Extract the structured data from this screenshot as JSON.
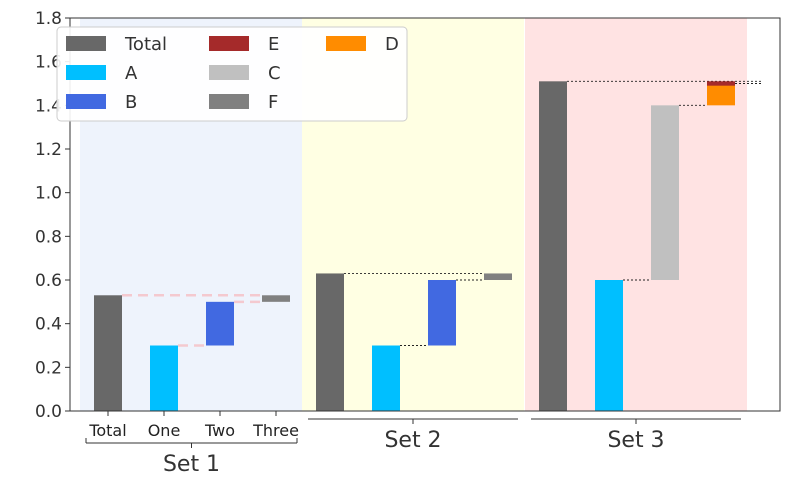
{
  "chart_data": {
    "type": "bar",
    "subtype": "waterfall",
    "ylim": [
      0,
      1.8
    ],
    "yticks": [
      "0.0",
      "0.2",
      "0.4",
      "0.6",
      "0.8",
      "1.0",
      "1.2",
      "1.4",
      "1.6",
      "1.8"
    ],
    "grid": false,
    "legend_placement": "top-left",
    "legend": [
      "Total",
      "A",
      "B",
      "E",
      "C",
      "F",
      "D"
    ],
    "colors": {
      "Total": "#686868",
      "A": "#00bfff",
      "B": "#4169e1",
      "C": "#c0c0c0",
      "D": "#ff8c00",
      "E": "#a52a2a",
      "F": "#808080"
    },
    "groups": [
      {
        "label": "Set 1",
        "background": "#eef3fc",
        "category_labels": [
          "Total",
          "One",
          "Two",
          "Three"
        ],
        "connector_style": "dashed",
        "bars": [
          {
            "series": "Total",
            "bottom": 0.0,
            "top": 0.53
          },
          {
            "series": "A",
            "bottom": 0.0,
            "top": 0.3
          },
          {
            "series": "B",
            "bottom": 0.3,
            "top": 0.5
          },
          {
            "series": "F",
            "bottom": 0.5,
            "top": 0.53
          }
        ]
      },
      {
        "label": "Set 2",
        "background": "#ffffe3",
        "category_labels": [],
        "connector_style": "dotted",
        "bars": [
          {
            "series": "Total",
            "bottom": 0.0,
            "top": 0.63
          },
          {
            "series": "A",
            "bottom": 0.0,
            "top": 0.3
          },
          {
            "series": "B",
            "bottom": 0.3,
            "top": 0.6
          },
          {
            "series": "F",
            "bottom": 0.6,
            "top": 0.63
          }
        ]
      },
      {
        "label": "Set 3",
        "background": "#ffe3e3",
        "category_labels": [],
        "connector_style": "dotted",
        "bars": [
          {
            "series": "Total",
            "bottom": 0.0,
            "top": 1.51
          },
          {
            "series": "A",
            "bottom": 0.0,
            "top": 0.6
          },
          {
            "series": "C",
            "bottom": 0.6,
            "top": 1.4
          },
          {
            "series": "D",
            "bottom": 1.4,
            "top": 1.5
          },
          {
            "series": "E",
            "bottom": 1.49,
            "top": 1.51
          }
        ]
      }
    ]
  }
}
